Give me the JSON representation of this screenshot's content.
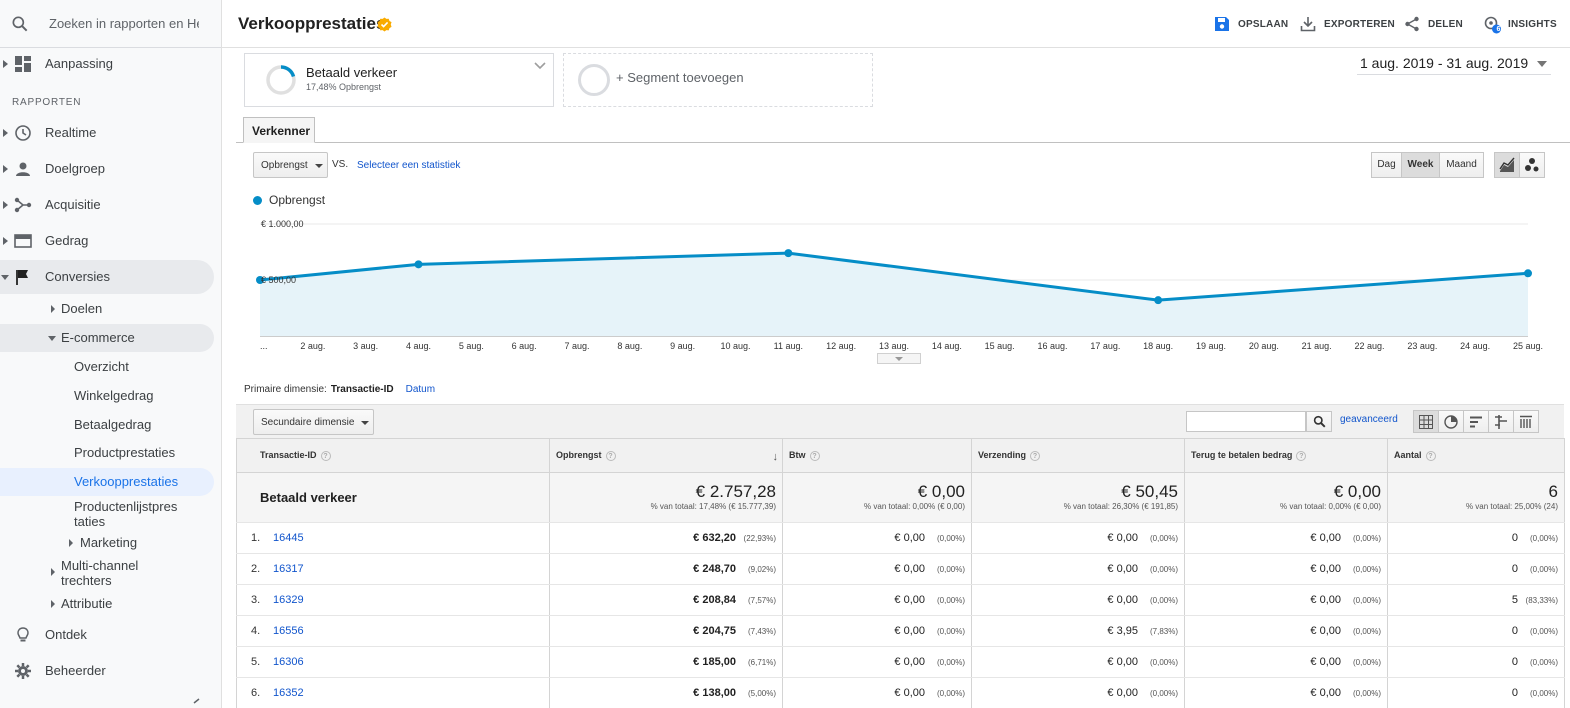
{
  "search": {
    "placeholder": "Zoeken in rapporten en Help"
  },
  "sidebar": {
    "top_item": {
      "label": "Aanpassing",
      "icon": "dashboard-icon"
    },
    "section_label": "RAPPORTEN",
    "items": [
      {
        "label": "Realtime",
        "icon": "clock-icon"
      },
      {
        "label": "Doelgroep",
        "icon": "person-icon"
      },
      {
        "label": "Acquisitie",
        "icon": "acquisition-icon"
      },
      {
        "label": "Gedrag",
        "icon": "behavior-icon"
      },
      {
        "label": "Conversies",
        "icon": "flag-icon"
      }
    ],
    "conversions_sub": {
      "doelen": "Doelen",
      "ecommerce": "E-commerce",
      "ecommerce_items": [
        "Overzicht",
        "Winkelgedrag",
        "Betaalgedrag",
        "Productprestaties",
        "Verkoopprestaties",
        "Productenlijstpres taties"
      ],
      "marketing": "Marketing",
      "multichannel": "Multi-channel trechters",
      "attributie": "Attributie"
    },
    "bottom_items": [
      {
        "label": "Ontdek",
        "icon": "lightbulb-icon"
      },
      {
        "label": "Beheerder",
        "icon": "gear-icon"
      }
    ]
  },
  "header": {
    "title": "Verkoopprestaties",
    "actions": {
      "save": "OPSLAAN",
      "export": "EXPORTEREN",
      "share": "DELEN",
      "insights": "INSIGHTS"
    },
    "insights_badge": "6"
  },
  "segments": {
    "active": {
      "name": "Betaald verkeer",
      "sub": "17,48% Opbrengst"
    },
    "add": "+ Segment toevoegen"
  },
  "date_range": "1 aug. 2019 - 31 aug. 2019",
  "tab": "Verkenner",
  "chart_controls": {
    "metric": "Opbrengst",
    "vs": "VS.",
    "select_metric": "Selecteer een statistiek",
    "granularity": [
      "Dag",
      "Week",
      "Maand"
    ]
  },
  "chart_data": {
    "type": "line",
    "series": [
      {
        "name": "Opbrengst",
        "values": [
          500,
          640,
          740,
          320,
          560
        ],
        "x_index": [
          0,
          3,
          10,
          17,
          24
        ]
      }
    ],
    "x_labels": [
      "...",
      "2 aug.",
      "3 aug.",
      "4 aug.",
      "5 aug.",
      "6 aug.",
      "7 aug.",
      "8 aug.",
      "9 aug.",
      "10 aug.",
      "11 aug.",
      "12 aug.",
      "13 aug.",
      "14 aug.",
      "15 aug.",
      "16 aug.",
      "17 aug.",
      "18 aug.",
      "19 aug.",
      "20 aug.",
      "21 aug.",
      "22 aug.",
      "23 aug.",
      "24 aug.",
      "25 aug."
    ],
    "y_ticks": [
      "€ 1.000,00",
      "€ 500,00"
    ],
    "ylim": [
      0,
      1000
    ],
    "grid": true,
    "legend": "top-left",
    "color": "#058dc7"
  },
  "primary_dimension": {
    "label": "Primaire dimensie:",
    "current": "Transactie-ID",
    "other": "Datum"
  },
  "secondary_dimension": "Secundaire dimensie",
  "advanced_link": "geavanceerd",
  "table": {
    "columns": [
      "Transactie-ID",
      "Opbrengst",
      "Btw",
      "Verzending",
      "Terug te betalen bedrag",
      "Aantal"
    ],
    "totals": {
      "label": "Betaald verkeer",
      "values": [
        "€ 2.757,28",
        "€ 0,00",
        "€ 50,45",
        "€ 0,00",
        "6"
      ],
      "subs": [
        "% van totaal: 17,48% (€ 15.777,39)",
        "% van totaal: 0,00% (€ 0,00)",
        "% van totaal: 26,30% (€ 191,85)",
        "% van totaal: 0,00% (€ 0,00)",
        "% van totaal: 25,00% (24)"
      ]
    },
    "rows": [
      {
        "idx": "1.",
        "id": "16445",
        "rev": "€ 632,20",
        "rev_pct": "(22,93%)",
        "tax": "€ 0,00",
        "tax_pct": "(0,00%)",
        "ship": "€ 0,00",
        "ship_pct": "(0,00%)",
        "refund": "€ 0,00",
        "refund_pct": "(0,00%)",
        "qty": "0",
        "qty_pct": "(0,00%)"
      },
      {
        "idx": "2.",
        "id": "16317",
        "rev": "€ 248,70",
        "rev_pct": "(9,02%)",
        "tax": "€ 0,00",
        "tax_pct": "(0,00%)",
        "ship": "€ 0,00",
        "ship_pct": "(0,00%)",
        "refund": "€ 0,00",
        "refund_pct": "(0,00%)",
        "qty": "0",
        "qty_pct": "(0,00%)"
      },
      {
        "idx": "3.",
        "id": "16329",
        "rev": "€ 208,84",
        "rev_pct": "(7,57%)",
        "tax": "€ 0,00",
        "tax_pct": "(0,00%)",
        "ship": "€ 0,00",
        "ship_pct": "(0,00%)",
        "refund": "€ 0,00",
        "refund_pct": "(0,00%)",
        "qty": "5",
        "qty_pct": "(83,33%)"
      },
      {
        "idx": "4.",
        "id": "16556",
        "rev": "€ 204,75",
        "rev_pct": "(7,43%)",
        "tax": "€ 0,00",
        "tax_pct": "(0,00%)",
        "ship": "€ 3,95",
        "ship_pct": "(7,83%)",
        "refund": "€ 0,00",
        "refund_pct": "(0,00%)",
        "qty": "0",
        "qty_pct": "(0,00%)"
      },
      {
        "idx": "5.",
        "id": "16306",
        "rev": "€ 185,00",
        "rev_pct": "(6,71%)",
        "tax": "€ 0,00",
        "tax_pct": "(0,00%)",
        "ship": "€ 0,00",
        "ship_pct": "(0,00%)",
        "refund": "€ 0,00",
        "refund_pct": "(0,00%)",
        "qty": "0",
        "qty_pct": "(0,00%)"
      },
      {
        "idx": "6.",
        "id": "16352",
        "rev": "€ 138,00",
        "rev_pct": "(5,00%)",
        "tax": "€ 0,00",
        "tax_pct": "(0,00%)",
        "ship": "€ 0,00",
        "ship_pct": "(0,00%)",
        "refund": "€ 0,00",
        "refund_pct": "(0,00%)",
        "qty": "0",
        "qty_pct": "(0,00%)"
      }
    ]
  }
}
